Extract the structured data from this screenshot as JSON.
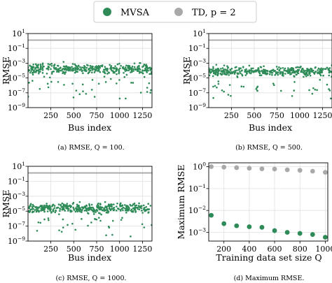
{
  "legend": {
    "entries": [
      {
        "label": "MVSA",
        "color": "#2e8b57"
      },
      {
        "label": "TD, p = 2",
        "color": "#a9a9a9"
      }
    ]
  },
  "chart_data": [
    {
      "type": "scatter",
      "id": "a",
      "caption": "(a) RMSE, Q = 100.",
      "ylabel": "RMSE",
      "xlabel": "Bus index",
      "yscale": "log",
      "xlim": [
        1,
        1354
      ],
      "ylim": [
        1e-09,
        10
      ],
      "xticks": [
        250,
        500,
        750,
        1000,
        1250
      ],
      "yticks": [
        {
          "value": 1e-09,
          "base": "10",
          "exp": "−9"
        },
        {
          "value": 1e-07,
          "base": "10",
          "exp": "−7"
        },
        {
          "value": 1e-05,
          "base": "10",
          "exp": "−5"
        },
        {
          "value": 0.001,
          "base": "10",
          "exp": "−3"
        },
        {
          "value": 0.1,
          "base": "10",
          "exp": "−1"
        },
        {
          "value": 10,
          "base": "10",
          "exp": "1"
        }
      ],
      "td_level": 1.3,
      "mvsa": {
        "n": 420,
        "center_log10": -3.8,
        "spread_log10": 0.65,
        "tail_min_log10": -7.8,
        "outlier_prob": 0.09,
        "seed": 11
      }
    },
    {
      "type": "scatter",
      "id": "b",
      "caption": "(b) RMSE, Q = 500.",
      "ylabel": "RMSE",
      "xlabel": "Bus index",
      "yscale": "log",
      "xlim": [
        1,
        1354
      ],
      "ylim": [
        1e-09,
        10
      ],
      "xticks": [
        250,
        500,
        750,
        1000,
        1250
      ],
      "yticks": [
        {
          "value": 1e-09,
          "base": "10",
          "exp": "−9"
        },
        {
          "value": 1e-07,
          "base": "10",
          "exp": "−7"
        },
        {
          "value": 1e-05,
          "base": "10",
          "exp": "−5"
        },
        {
          "value": 0.001,
          "base": "10",
          "exp": "−3"
        },
        {
          "value": 0.1,
          "base": "10",
          "exp": "−1"
        },
        {
          "value": 10,
          "base": "10",
          "exp": "1"
        }
      ],
      "td_level": 1.3,
      "mvsa": {
        "n": 420,
        "center_log10": -4.1,
        "spread_log10": 0.6,
        "tail_min_log10": -8.0,
        "outlier_prob": 0.09,
        "seed": 23
      }
    },
    {
      "type": "scatter",
      "id": "c",
      "caption": "(c) RMSE, Q = 1000.",
      "ylabel": "RMSE",
      "xlabel": "Bus index",
      "yscale": "log",
      "xlim": [
        1,
        1354
      ],
      "ylim": [
        1e-09,
        10
      ],
      "xticks": [
        250,
        500,
        750,
        1000,
        1250
      ],
      "yticks": [
        {
          "value": 1e-09,
          "base": "10",
          "exp": "−9"
        },
        {
          "value": 1e-07,
          "base": "10",
          "exp": "−7"
        },
        {
          "value": 1e-05,
          "base": "10",
          "exp": "−5"
        },
        {
          "value": 0.001,
          "base": "10",
          "exp": "−3"
        },
        {
          "value": 0.1,
          "base": "10",
          "exp": "−1"
        },
        {
          "value": 10,
          "base": "10",
          "exp": "1"
        }
      ],
      "td_level": 1.3,
      "mvsa": {
        "n": 420,
        "center_log10": -4.6,
        "spread_log10": 0.6,
        "tail_min_log10": -8.4,
        "outlier_prob": 0.09,
        "seed": 37
      }
    },
    {
      "type": "scatter",
      "id": "d",
      "caption": "(d) Maximum RMSE.",
      "ylabel": "Maximum RMSE",
      "xlabel": "Training data set size Q",
      "yscale": "log",
      "xlim": [
        80,
        1020
      ],
      "ylim": [
        0.0004,
        1.5
      ],
      "xticks": [
        200,
        400,
        600,
        800,
        1000
      ],
      "yticks": [
        {
          "value": 0.001,
          "base": "10",
          "exp": "−3"
        },
        {
          "value": 0.01,
          "base": "10",
          "exp": "−2"
        },
        {
          "value": 0.1,
          "base": "10",
          "exp": "−1"
        },
        {
          "value": 1,
          "base": "10",
          "exp": "0"
        }
      ],
      "series": [
        {
          "name": "TD, p = 2",
          "color": "#a9a9a9",
          "x": [
            100,
            200,
            300,
            400,
            500,
            600,
            700,
            800,
            900,
            1000
          ],
          "y": [
            1.0,
            0.95,
            0.9,
            0.85,
            0.8,
            0.78,
            0.72,
            0.68,
            0.62,
            0.55
          ]
        },
        {
          "name": "MVSA",
          "color": "#2e8b57",
          "x": [
            100,
            200,
            300,
            400,
            500,
            600,
            700,
            800,
            900,
            1000
          ],
          "y": [
            0.006,
            0.0025,
            0.002,
            0.0018,
            0.0017,
            0.0012,
            0.001,
            0.0009,
            0.0008,
            0.0006
          ]
        }
      ]
    }
  ]
}
